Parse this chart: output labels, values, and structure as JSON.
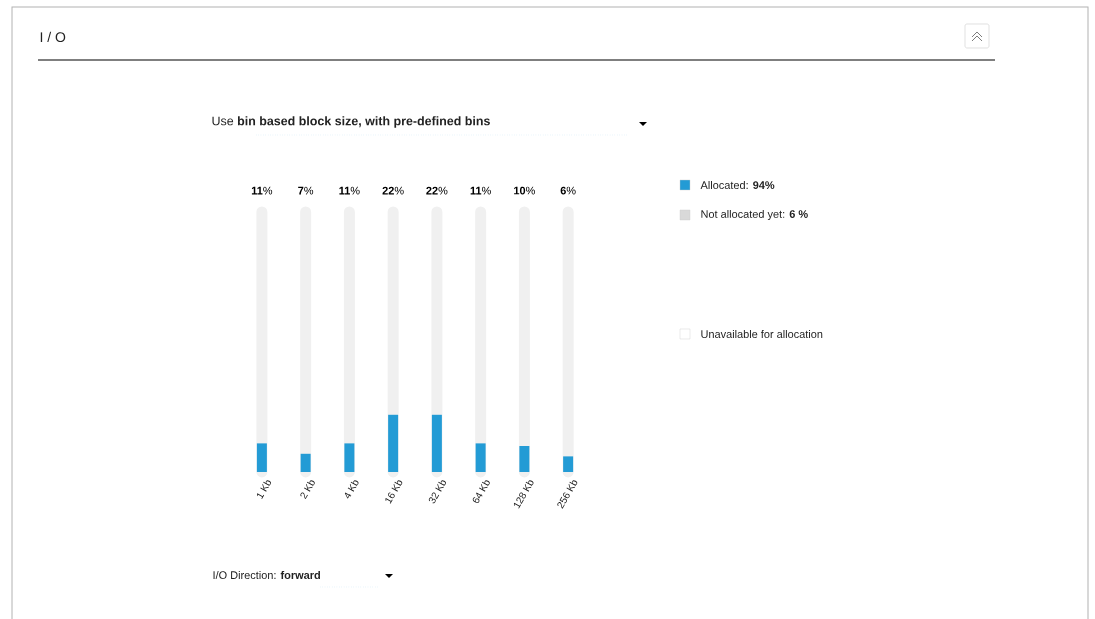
{
  "chart_data": {
    "type": "bar",
    "title": "I / O",
    "subtitle": "Use **bin based block size, with pre-defined bins**",
    "categories": [
      "1 Kb",
      "2 Kb",
      "4 Kb",
      "16 Kb",
      "32 Kb",
      "64 Kb",
      "128 Kb",
      "256 Kb"
    ],
    "values": [
      11,
      7,
      11,
      22,
      22,
      11,
      10,
      6
    ],
    "value_labels": [
      "**11**%",
      "**7**%",
      "**11**%",
      "**22**%",
      "**22**%",
      "**11**%",
      "**10**%",
      "**6**%"
    ],
    "color": "#239bd5",
    "ylim": [
      0,
      100
    ],
    "grid": "x",
    "annotations": [
      "Allocated: **94%**",
      "Not allocated yet: **6 %**",
      "Unavailable for allocation",
      "I/O Direction: **forward**"
    ]
  }
}
